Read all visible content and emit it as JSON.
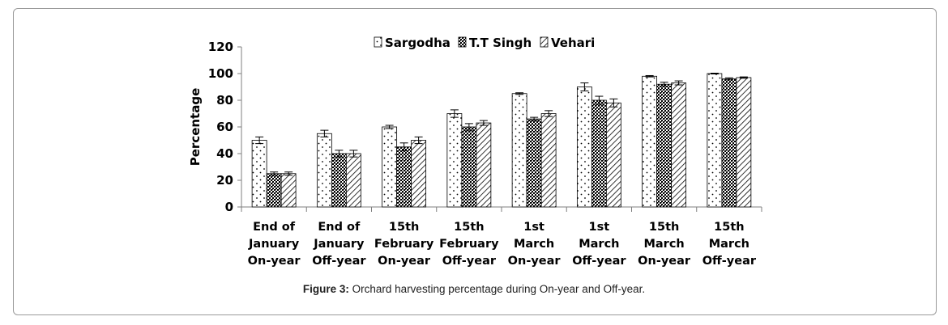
{
  "caption": {
    "label": "Figure 3:",
    "text": " Orchard harvesting percentage during On-year and Off-year."
  },
  "chart_data": {
    "type": "bar",
    "ylabel": "Percentage",
    "ylim": [
      0,
      120
    ],
    "yticks": [
      0,
      20,
      40,
      60,
      80,
      100,
      120
    ],
    "legend_position": "top-center",
    "categories": [
      [
        "End of",
        "January",
        "On-year"
      ],
      [
        "End of",
        "January",
        "Off-year"
      ],
      [
        "15th",
        "February",
        "On-year"
      ],
      [
        "15th",
        "February",
        "Off-year"
      ],
      [
        "1st",
        "March",
        "On-year"
      ],
      [
        "1st",
        "March",
        "Off-year"
      ],
      [
        "15th",
        "March",
        "On-year"
      ],
      [
        "15th",
        "March",
        "Off-year"
      ]
    ],
    "series": [
      {
        "name": "Sargodha",
        "pattern": "dots",
        "values": [
          50,
          55,
          60,
          70,
          85,
          90,
          98,
          100
        ],
        "errors": [
          2.5,
          2.5,
          1.2,
          2.8,
          0.6,
          3,
          0.5,
          0.3
        ]
      },
      {
        "name": "T.T Singh",
        "pattern": "grid",
        "values": [
          25,
          40,
          45,
          60,
          66,
          80,
          92,
          96
        ],
        "errors": [
          1.2,
          2.5,
          3,
          2.5,
          1.2,
          3,
          1.5,
          0.8
        ]
      },
      {
        "name": "Vehari",
        "pattern": "diag",
        "values": [
          25,
          40,
          50,
          63,
          70,
          78,
          93,
          97
        ],
        "errors": [
          1.2,
          2.5,
          2.5,
          1.8,
          2.2,
          3,
          1.5,
          0.5
        ]
      }
    ],
    "colors": {
      "axis": "#7f7f7f",
      "bar_stroke": "#000000",
      "pattern": "#000000"
    }
  }
}
